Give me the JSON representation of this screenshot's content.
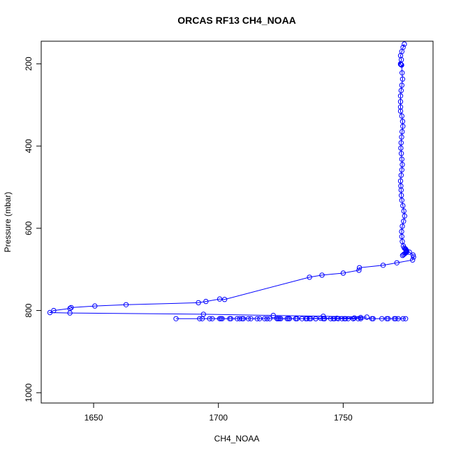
{
  "chart_data": {
    "type": "scatter",
    "title": "ORCAS RF13 CH4_NOAA",
    "xlabel": "CH4_NOAA",
    "ylabel": "Pressure (mbar)",
    "xlim": [
      1629,
      1786
    ],
    "ylim": [
      1025,
      145
    ],
    "y_inverted": true,
    "grid": false,
    "series_color": "#0000ff",
    "x_ticks": [
      1650,
      1700,
      1750
    ],
    "y_ticks": [
      200,
      400,
      600,
      800,
      1000
    ],
    "series": [
      {
        "x": [
          1774.5,
          1774.0,
          1773.5,
          1773.0,
          1773.3,
          1773.0,
          1773.0,
          1773.2,
          1773.4,
          1773.6,
          1773.8,
          1773.5,
          1773.2,
          1773.0,
          1773.0,
          1773.0,
          1773.0,
          1773.5,
          1773.8,
          1773.9,
          1773.6,
          1773.4,
          1773.2,
          1773.1,
          1773.3,
          1773.5,
          1773.7,
          1773.5,
          1773.2,
          1773.0,
          1773.1,
          1773.2,
          1773.3,
          1773.5,
          1773.9,
          1774.3,
          1774.6,
          1774.2,
          1773.7,
          1773.4,
          1773.5,
          1773.7,
          1774.1,
          1774.5,
          1774.9,
          1775.1,
          1775.3,
          1775.4,
          1775.5,
          1775.4,
          1775.3,
          1775.2,
          1775.0,
          1774.6,
          1774.2,
          1773.8,
          1776.5,
          1778.0,
          1778.2,
          1777.8,
          1771.5,
          1766.0,
          1756.5,
          1756.3,
          1750.0,
          1741.5,
          1736.5,
          1702.5,
          1700.5,
          1695.0,
          1692.0,
          1663.0,
          1650.5,
          1641.0,
          1640.5,
          1634.0,
          1632.5,
          1640.5,
          1694.0,
          1722.0,
          1742.0,
          1759.5,
          1757.0,
          1754.5,
          1747.5,
          1741.0,
          1735.0,
          1728.5,
          1724.0,
          1683.0,
          1692.5,
          1696.5,
          1701.0,
          1704.5,
          1707.5,
          1710.0,
          1713.0,
          1716.5,
          1720.5,
          1723.5,
          1725.0,
          1728.0,
          1731.0,
          1733.5,
          1736.5,
          1739.0,
          1742.5,
          1745.0,
          1748.0,
          1751.0,
          1754.0,
          1757.0,
          1762.0,
          1765.5,
          1768.0,
          1771.0,
          1774.0,
          1775.0,
          1772.0,
          1767.5,
          1761.5,
          1756.0,
          1752.0,
          1749.5,
          1746.0,
          1742.5,
          1739.0,
          1735.5,
          1731.5,
          1727.5,
          1723.5,
          1719.5,
          1715.5,
          1712.0,
          1708.5,
          1705.0,
          1701.5,
          1697.5,
          1693.5,
          1700.5,
          1709.5,
          1718.5,
          1724.5,
          1731.0,
          1737.0,
          1742.0,
          1746.5,
          1750.5,
          1754.0,
          1770.5
        ],
        "y": [
          152,
          160,
          170,
          180,
          190,
          200,
          201,
          202,
          203,
          222,
          237,
          252,
          265,
          278,
          292,
          305,
          315,
          327,
          340,
          352,
          365,
          378,
          392,
          405,
          418,
          432,
          445,
          458,
          471,
          485,
          497,
          507,
          520,
          532,
          545,
          558,
          570,
          583,
          595,
          608,
          620,
          632,
          643,
          648,
          650,
          652,
          654,
          655,
          656,
          657,
          658,
          659,
          660,
          662,
          664,
          666,
          658,
          665,
          670,
          677,
          684,
          690,
          696,
          702,
          709,
          714,
          719,
          773,
          772,
          778,
          781,
          786,
          789,
          793,
          795,
          800,
          805,
          806,
          809,
          812,
          814,
          816,
          817,
          818,
          819,
          819,
          820,
          820,
          820,
          820,
          820,
          820,
          820,
          820,
          820,
          820,
          820,
          820,
          820,
          820,
          820,
          820,
          820,
          820,
          820,
          820,
          820,
          820,
          820,
          820,
          820,
          820,
          820,
          820,
          820,
          820,
          820,
          820,
          820,
          820,
          820,
          820,
          820,
          820,
          820,
          820,
          820,
          820,
          820,
          820,
          820,
          820,
          820,
          820,
          820,
          820,
          820,
          820,
          820,
          820,
          820,
          820,
          820,
          820,
          820,
          820,
          820,
          820,
          820,
          820
        ]
      }
    ]
  }
}
